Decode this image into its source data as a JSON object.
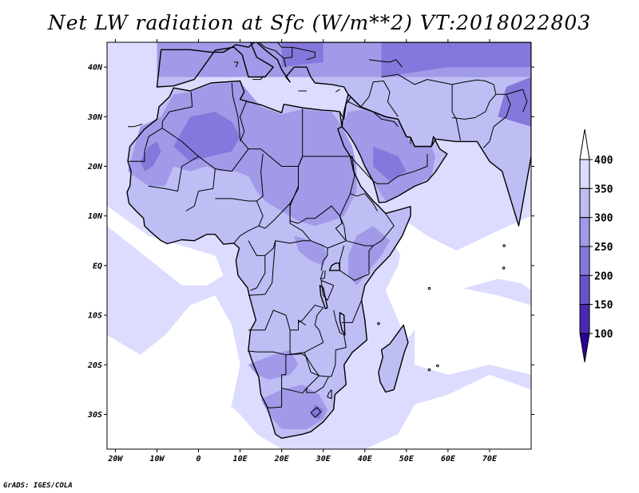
{
  "title": "Net LW radiation at Sfc (W/m**2) VT:2018022803",
  "credit": "GrADS: IGES/COLA",
  "map": {
    "lon_range": [
      -22,
      80
    ],
    "lat_range": [
      -37,
      45
    ],
    "lon_ticks": [
      {
        "value": -20,
        "label": "20W"
      },
      {
        "value": -10,
        "label": "10W"
      },
      {
        "value": 0,
        "label": "0"
      },
      {
        "value": 10,
        "label": "10E"
      },
      {
        "value": 20,
        "label": "20E"
      },
      {
        "value": 30,
        "label": "30E"
      },
      {
        "value": 40,
        "label": "40E"
      },
      {
        "value": 50,
        "label": "50E"
      },
      {
        "value": 60,
        "label": "60E"
      },
      {
        "value": 70,
        "label": "70E"
      }
    ],
    "lat_ticks": [
      {
        "value": 40,
        "label": "40N"
      },
      {
        "value": 30,
        "label": "30N"
      },
      {
        "value": 20,
        "label": "20N"
      },
      {
        "value": 10,
        "label": "10N"
      },
      {
        "value": 0,
        "label": "EQ"
      },
      {
        "value": -10,
        "label": "10S"
      },
      {
        "value": -20,
        "label": "20S"
      },
      {
        "value": -30,
        "label": "30S"
      }
    ]
  },
  "colorbar": {
    "labels": [
      "400",
      "350",
      "300",
      "250",
      "200",
      "150",
      "100"
    ],
    "colors": [
      "#ffffff",
      "#dcdcff",
      "#bebef5",
      "#a09ae8",
      "#8478dc",
      "#6a52cc",
      "#4a28b4",
      "#2a0096"
    ]
  },
  "fill_colors": {
    "ocean": "#ffffff",
    "ocean_light": "#dcdcff",
    "land_300": "#bebef5",
    "land_250": "#a09ae8",
    "land_200": "#8478dc"
  }
}
